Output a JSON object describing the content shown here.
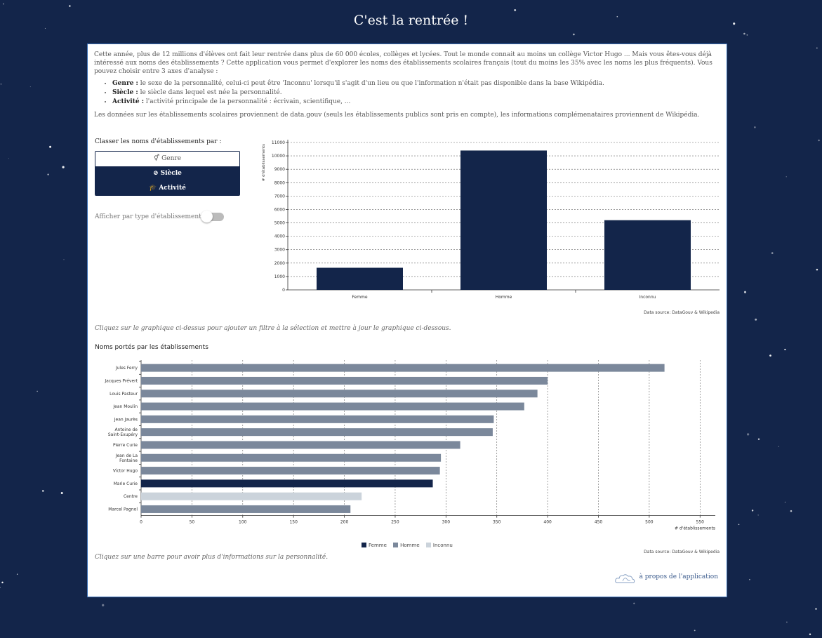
{
  "page_title": "C'est la rentrée !",
  "intro": {
    "paragraph": "Cette année, plus de 12 millions d'élèves ont fait leur rentrée dans plus de 60 000 écoles, collèges et lycées. Tout le monde connait au moins un collège Victor Hugo ... Mais vous êtes-vous déjà intéressé aux noms des établissements ? Cette application vous permet d'explorer les noms des établissements scolaires français (tout du moins les 35% avec les noms les plus fréquents). Vous pouvez choisir entre 3 axes d'analyse :",
    "axes": [
      {
        "term": "Genre :",
        "desc": " le sexe de la personnalité, celui-ci peut être 'Inconnu' lorsqu'il s'agit d'un lieu ou que l'information n'était pas disponible dans la base Wikipédia."
      },
      {
        "term": "Siècle :",
        "desc": " le siècle dans lequel est née la personnalité."
      },
      {
        "term": "Activité :",
        "desc": " l'activité principale de la personnalité : écrivain, scientifique, ..."
      }
    ],
    "source": "Les données sur les établissements scolaires proviennent de data.gouv (seuls les établissements publics sont pris en compte), les informations complémenataires proviennent de Wikipédia."
  },
  "controls": {
    "classer_label": "Classer les noms d'établissements par :",
    "buttons": [
      {
        "icon": "⚥",
        "label": "Genre",
        "active": true
      },
      {
        "icon": "⊘",
        "label": "Siècle",
        "active": false
      },
      {
        "icon": "🎓",
        "label": "Activité",
        "active": false
      }
    ],
    "toggle_label": "Afficher par type d'établissement :",
    "toggle_on": false
  },
  "hints": {
    "top": "Cliquez sur le graphique ci-dessus pour ajouter un filtre à la sélection et mettre à jour le graphique ci-dessous.",
    "bottom": "Cliquez sur une barre pour avoir plus d'informations sur la personnalité."
  },
  "about_label": "à propos de l'application",
  "colors": {
    "background": "#13254a",
    "femme": "#13254a",
    "homme": "#7b889b",
    "inconnu": "#cbd3db"
  },
  "chart_data": [
    {
      "type": "bar",
      "title": "",
      "categories": [
        "Femme",
        "Homme",
        "Inconnu"
      ],
      "values": [
        1650,
        10400,
        5200
      ],
      "ylabel": "# d'établissements",
      "xlabel": "",
      "ylim": [
        0,
        11000
      ],
      "yticks": [
        0,
        1000,
        2000,
        3000,
        4000,
        5000,
        6000,
        7000,
        8000,
        9000,
        10000,
        11000
      ],
      "grid": true,
      "source": "Data source: DataGouv & Wikipedia"
    },
    {
      "type": "bar",
      "orientation": "horizontal",
      "title": "Noms portés par les établissements",
      "categories": [
        "Jules Ferry",
        "Jacques Prévert",
        "Louis Pasteur",
        "Jean Moulin",
        "Jean Jaurès",
        "Antoine de Saint-Exupéry",
        "Pierre Curie",
        "Jean de La Fontaine",
        "Victor Hugo",
        "Marie Curie",
        "Centre",
        "Marcel Pagnol"
      ],
      "category_lines": [
        [
          "Jules Ferry"
        ],
        [
          "Jacques Prévert"
        ],
        [
          "Louis Pasteur"
        ],
        [
          "Jean Moulin"
        ],
        [
          "Jean Jaurès"
        ],
        [
          "Antoine de",
          "Saint-Exupéry"
        ],
        [
          "Pierre Curie"
        ],
        [
          "Jean de La",
          "Fontaine"
        ],
        [
          "Victor Hugo"
        ],
        [
          "Marie Curie"
        ],
        [
          "Centre"
        ],
        [
          "Marcel Pagnol"
        ]
      ],
      "values": [
        515,
        400,
        390,
        377,
        347,
        346,
        314,
        295,
        294,
        287,
        217,
        206
      ],
      "groups": [
        "Homme",
        "Homme",
        "Homme",
        "Homme",
        "Homme",
        "Homme",
        "Homme",
        "Homme",
        "Homme",
        "Femme",
        "Inconnu",
        "Homme"
      ],
      "xlabel": "# d'établissements",
      "xlim": [
        0,
        565
      ],
      "xticks": [
        0,
        50,
        100,
        150,
        200,
        250,
        300,
        350,
        400,
        450,
        500,
        550
      ],
      "grid": true,
      "legend": [
        "Femme",
        "Homme",
        "Inconnu"
      ],
      "legend_position": "bottom",
      "source": "Data source: DataGouv & Wikipedia"
    }
  ]
}
